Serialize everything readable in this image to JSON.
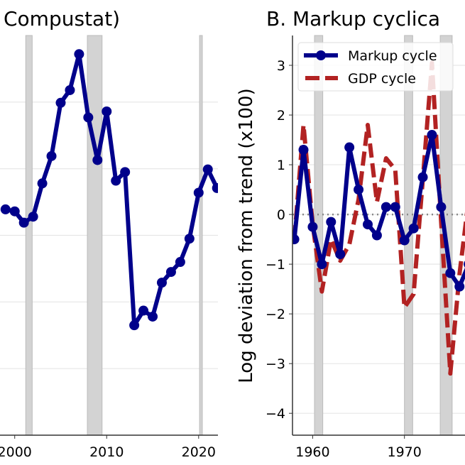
{
  "chart_data": [
    {
      "type": "line",
      "title": "Compustat)",
      "xlabel": "",
      "ylabel": "",
      "xlim": [
        1998.4,
        2022.1
      ],
      "ylim": [
        -1,
        5
      ],
      "grid": true,
      "xticks": [
        2000,
        2010,
        2020
      ],
      "xtick_labels": [
        "2000",
        "2010",
        "2020"
      ],
      "yticks": [
        0,
        1,
        2,
        3,
        4
      ],
      "recession_bands": [
        [
          2001.2,
          2001.9
        ],
        [
          2007.9,
          2009.5
        ],
        [
          2020.1,
          2020.4
        ]
      ],
      "series": [
        {
          "color": "#00008B",
          "marker": "circle",
          "x": [
            1999,
            2000,
            2001,
            2002,
            2003,
            2004,
            2005,
            2006,
            2007,
            2008,
            2009,
            2010,
            2011,
            2012,
            2013,
            2014,
            2015,
            2016,
            2017,
            2018,
            2019,
            2020,
            2021,
            2022
          ],
          "y": [
            2.39,
            2.36,
            2.19,
            2.28,
            2.78,
            3.19,
            3.99,
            4.18,
            4.72,
            3.77,
            3.13,
            3.86,
            2.82,
            2.95,
            0.65,
            0.87,
            0.78,
            1.29,
            1.45,
            1.6,
            1.95,
            2.64,
            2.99,
            2.71
          ]
        }
      ]
    },
    {
      "type": "line",
      "title": "B. Markup cyclica",
      "xlabel": "",
      "ylabel": "Log deviation from trend (x100)",
      "xlim": [
        1957.8,
        1976.6
      ],
      "ylim": [
        -4.44,
        3.6
      ],
      "grid": true,
      "xticks": [
        1960,
        1970
      ],
      "xtick_labels": [
        "1960",
        "1970"
      ],
      "yticks": [
        3,
        2,
        1,
        0,
        -1,
        -2,
        -3,
        -4
      ],
      "ytick_labels": [
        "3",
        "2",
        "1",
        "0",
        "−1",
        "−2",
        "−3",
        "−4"
      ],
      "zero_line": "dotted",
      "legend_placement": "top-left",
      "recession_bands": [
        [
          1960.2,
          1961.1
        ],
        [
          1970.0,
          1970.9
        ],
        [
          1973.9,
          1975.2
        ]
      ],
      "series": [
        {
          "name": "Markup cycle",
          "color": "#00008B",
          "style": "solid",
          "marker": "circle",
          "x": [
            1958,
            1959,
            1960,
            1961,
            1962,
            1963,
            1964,
            1965,
            1966,
            1967,
            1968,
            1969,
            1970,
            1971,
            1972,
            1973,
            1974,
            1975,
            1976,
            1977
          ],
          "y": [
            -0.5,
            1.3,
            -0.25,
            -1.0,
            -0.15,
            -0.8,
            1.35,
            0.5,
            -0.2,
            -0.42,
            0.15,
            0.15,
            -0.52,
            -0.28,
            0.75,
            1.6,
            0.15,
            -1.18,
            -1.45,
            -1.0
          ]
        },
        {
          "name": "GDP cycle",
          "color": "#B22222",
          "style": "dashed",
          "x": [
            1958,
            1959,
            1960,
            1961,
            1962,
            1963,
            1964,
            1965,
            1966,
            1967,
            1968,
            1969,
            1970,
            1971,
            1972,
            1973,
            1974,
            1975,
            1976,
            1977
          ],
          "y": [
            -0.5,
            1.8,
            -0.2,
            -1.55,
            -0.5,
            -0.93,
            -0.6,
            0.3,
            1.8,
            0.25,
            1.13,
            0.9,
            -1.87,
            -1.6,
            0.7,
            3.05,
            -0.15,
            -3.2,
            -1.2,
            0.3
          ]
        }
      ]
    }
  ]
}
